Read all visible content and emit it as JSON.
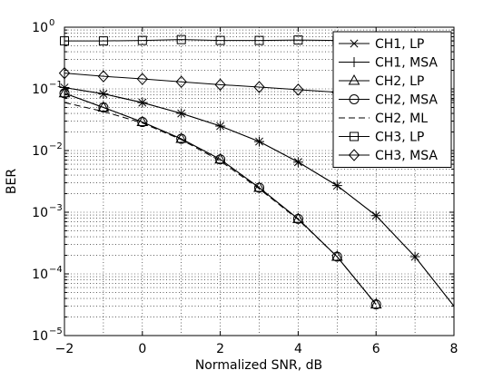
{
  "chart_data": {
    "type": "line",
    "title": "",
    "xlabel": "Normalized SNR, dB",
    "ylabel": "BER",
    "xlim": [
      -2,
      8
    ],
    "ylim": [
      1e-05,
      1
    ],
    "yscale": "log",
    "grid": "dotted, major and minor",
    "legend_position": "top-right",
    "x_ticks": [
      {
        "value": -2,
        "label": "−2"
      },
      {
        "value": 0,
        "label": "0"
      },
      {
        "value": 2,
        "label": "2"
      },
      {
        "value": 4,
        "label": "4"
      },
      {
        "value": 6,
        "label": "6"
      },
      {
        "value": 8,
        "label": "8"
      }
    ],
    "y_ticks": [
      {
        "value": 1,
        "base": "10",
        "exp": "0"
      },
      {
        "value": 0.1,
        "base": "10",
        "exp": "−1"
      },
      {
        "value": 0.01,
        "base": "10",
        "exp": "−2"
      },
      {
        "value": 0.001,
        "base": "10",
        "exp": "−3"
      },
      {
        "value": 0.0001,
        "base": "10",
        "exp": "−4"
      },
      {
        "value": 1e-05,
        "base": "10",
        "exp": "−5"
      }
    ],
    "series": [
      {
        "name": "CH1, LP",
        "marker": "x",
        "dash": "solid",
        "x": [
          -2,
          -1,
          0,
          1,
          2,
          3,
          4,
          5,
          6,
          7,
          8
        ],
        "y": [
          0.105,
          0.083,
          0.06,
          0.04,
          0.025,
          0.014,
          0.0065,
          0.0027,
          0.00088,
          0.00019,
          3e-05
        ]
      },
      {
        "name": "CH1, MSA",
        "marker": "+",
        "dash": "solid",
        "x": [
          -2,
          -1,
          0,
          1,
          2,
          3,
          4,
          5,
          6,
          7,
          8
        ],
        "y": [
          0.105,
          0.083,
          0.06,
          0.04,
          0.025,
          0.014,
          0.0065,
          0.0027,
          0.00088,
          0.00019,
          3e-05
        ]
      },
      {
        "name": "CH2, LP",
        "marker": "triangle",
        "dash": "solid",
        "x": [
          -2,
          -1,
          0,
          1,
          2,
          3,
          4,
          5,
          6
        ],
        "y": [
          0.085,
          0.05,
          0.029,
          0.0155,
          0.0072,
          0.0025,
          0.00078,
          0.00019,
          3.2e-05
        ]
      },
      {
        "name": "CH2, MSA",
        "marker": "circle",
        "dash": "solid",
        "x": [
          -2,
          -1,
          0,
          1,
          2,
          3,
          4,
          5,
          6
        ],
        "y": [
          0.085,
          0.05,
          0.029,
          0.0155,
          0.0072,
          0.0025,
          0.00078,
          0.00019,
          3.2e-05
        ]
      },
      {
        "name": "CH2, ML",
        "marker": "none",
        "dash": "dashed",
        "x": [
          -2,
          -1,
          0,
          1,
          2,
          3,
          4,
          5,
          6
        ],
        "y": [
          0.06,
          0.043,
          0.028,
          0.015,
          0.0068,
          0.0024,
          0.00076,
          0.00019,
          3.2e-05
        ]
      },
      {
        "name": "CH3, LP",
        "marker": "square",
        "dash": "solid",
        "x": [
          -2,
          -1,
          0,
          1,
          2,
          3,
          4,
          5,
          6,
          7,
          8
        ],
        "y": [
          0.6,
          0.6,
          0.61,
          0.63,
          0.61,
          0.61,
          0.62,
          0.61,
          0.6,
          0.6,
          0.6
        ]
      },
      {
        "name": "CH3, MSA",
        "marker": "diamond",
        "dash": "solid",
        "x": [
          -2,
          -1,
          0,
          1,
          2,
          3,
          4,
          5,
          6,
          7,
          8
        ],
        "y": [
          0.18,
          0.16,
          0.145,
          0.13,
          0.117,
          0.107,
          0.097,
          0.088,
          0.08,
          0.073,
          0.066
        ]
      }
    ]
  }
}
